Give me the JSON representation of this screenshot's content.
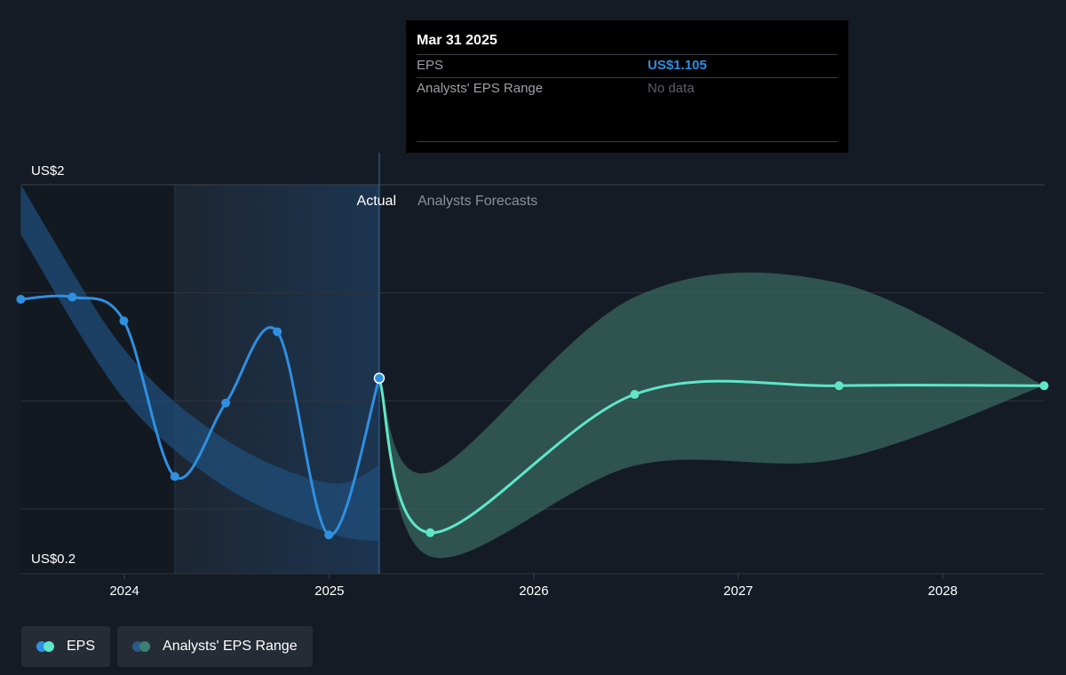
{
  "tooltip": {
    "date": "Mar 31 2025",
    "rows": [
      {
        "label": "EPS",
        "value": "US$1.105"
      },
      {
        "label": "Analysts' EPS Range",
        "value": "No data"
      }
    ]
  },
  "labels": {
    "y_top": "US$2",
    "y_bottom": "US$0.2",
    "actual": "Actual",
    "forecast": "Analysts Forecasts"
  },
  "legend": [
    {
      "label": "EPS",
      "colors": [
        "#2f8fe0",
        "#5fe6c8"
      ]
    },
    {
      "label": "Analysts' EPS Range",
      "colors": [
        "#2a5a8a",
        "#3a7f72"
      ]
    }
  ],
  "colors": {
    "eps_actual": "#2f8fe0",
    "eps_forecast": "#5fe6c8",
    "range_past": "#1f4e7a",
    "range_forecast": "#3a6b63",
    "background": "#151b24",
    "grid": "#2e343d"
  },
  "chart_data": {
    "type": "line",
    "y_unit": "US$",
    "ylim": [
      0.2,
      2.0
    ],
    "xlim": [
      "2023-07-01",
      "2028-07-01"
    ],
    "x_ticks": [
      "2024",
      "2025",
      "2026",
      "2027",
      "2028"
    ],
    "y_ticks": [
      0.2,
      0.5,
      1.0,
      1.5,
      2.0
    ],
    "y_tick_labels": [
      "US$0.2",
      "",
      "",
      "",
      "US$2"
    ],
    "grid": true,
    "divider_date": "2025-03-31",
    "highlight_start": "2024-03-31",
    "series": [
      {
        "name": "EPS",
        "segment": "actual",
        "points": [
          {
            "x": "2023-06-30",
            "y": 1.47
          },
          {
            "x": "2023-09-30",
            "y": 1.48
          },
          {
            "x": "2023-12-31",
            "y": 1.37
          },
          {
            "x": "2024-03-31",
            "y": 0.65
          },
          {
            "x": "2024-06-30",
            "y": 0.99
          },
          {
            "x": "2024-09-30",
            "y": 1.32
          },
          {
            "x": "2024-12-31",
            "y": 0.38
          },
          {
            "x": "2025-03-31",
            "y": 1.105
          }
        ]
      },
      {
        "name": "EPS",
        "segment": "forecast",
        "points": [
          {
            "x": "2025-03-31",
            "y": 1.105
          },
          {
            "x": "2025-06-30",
            "y": 0.39
          },
          {
            "x": "2026-06-30",
            "y": 1.03
          },
          {
            "x": "2027-06-30",
            "y": 1.07
          },
          {
            "x": "2028-06-30",
            "y": 1.07
          }
        ]
      },
      {
        "name": "Analysts' EPS Range",
        "segment": "past",
        "points": [
          {
            "x": "2023-06-30",
            "high": 2.0,
            "low": 1.77
          },
          {
            "x": "2023-12-31",
            "high": 1.24,
            "low": 1.01
          },
          {
            "x": "2024-06-30",
            "high": 0.82,
            "low": 0.6
          },
          {
            "x": "2024-12-31",
            "high": 0.62,
            "low": 0.39
          },
          {
            "x": "2025-03-31",
            "high": 0.7,
            "low": 0.35
          }
        ]
      },
      {
        "name": "Analysts' EPS Range",
        "segment": "forecast",
        "points": [
          {
            "x": "2025-03-31",
            "high": 1.105,
            "low": 1.105
          },
          {
            "x": "2025-06-30",
            "high": 0.67,
            "low": 0.28
          },
          {
            "x": "2026-06-30",
            "high": 1.48,
            "low": 0.7
          },
          {
            "x": "2027-06-30",
            "high": 1.545,
            "low": 0.73
          },
          {
            "x": "2028-06-30",
            "high": 1.07,
            "low": 1.07
          }
        ]
      }
    ]
  }
}
